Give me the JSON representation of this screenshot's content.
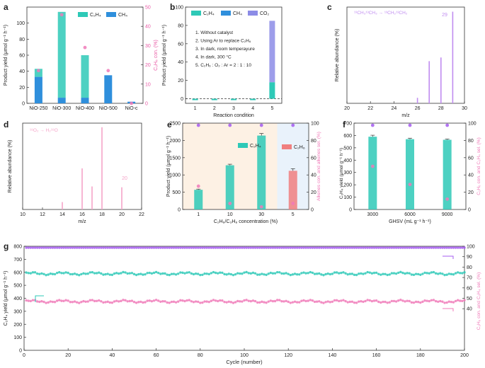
{
  "colors": {
    "c2h4": "#2ec9b7",
    "ch4": "#2f8fdc",
    "co2": "#8c8ce6",
    "c2h6": "#f07f7f",
    "conv": "#f07ab8",
    "sel": "#a45cf0",
    "pink_text": "#e85aa6",
    "purple_text": "#9b5de5",
    "ms_line": "#c08cf0",
    "ms_line_d": "#f5a3c8",
    "bg_orange": "#fdf1e4",
    "bg_blue": "#e9f2fb"
  },
  "panels": {
    "a": {
      "letter": "a"
    },
    "b": {
      "letter": "b",
      "notes": [
        "1. Without catalyst",
        "2. Using Ar to replace C₂H₆",
        "3. In dark, room temperayure",
        "4. In dark, 300 °C",
        "5. C₂H₆ : O₂ : Ar = 2 : 1 : 10"
      ]
    },
    "c": {
      "letter": "c",
      "annotation": "¹³CH₃¹³CH₃ → ¹³CH₂¹³CH₂",
      "peak_label": "29"
    },
    "d": {
      "letter": "d",
      "annotation": "¹⁸O₂ → H₂¹⁸O",
      "peak_label": "20"
    },
    "e": {
      "letter": "e"
    },
    "f": {
      "letter": "f"
    },
    "g": {
      "letter": "g"
    }
  },
  "chart_data": [
    {
      "panel": "a",
      "type": "bar",
      "categories": [
        "NiO-250",
        "NiO-300",
        "NiO-400",
        "NiO-500",
        "NiO-c"
      ],
      "series": [
        {
          "name": "C₂H₄",
          "values": [
            10,
            107,
            53,
            0,
            0
          ]
        },
        {
          "name": "CH₄",
          "values": [
            33,
            7,
            7,
            35,
            2
          ]
        },
        {
          "name": "C₂H₆ con.",
          "values": [
            17,
            46,
            29,
            17,
            0
          ]
        }
      ],
      "stacked": true,
      "ylabel": "Product yield (μmol g⁻¹ h⁻¹)",
      "ylabel_right": "C₂H₆ con. (%)",
      "ylim": [
        0,
        120
      ],
      "yticks": [
        0,
        20,
        40,
        60,
        80,
        100
      ],
      "ylim_right": [
        0,
        50
      ],
      "yticks_right": [
        0,
        10,
        20,
        30,
        40,
        50
      ],
      "legend": "top-right"
    },
    {
      "panel": "b",
      "type": "bar",
      "categories": [
        "1",
        "2",
        "3",
        "4",
        "5"
      ],
      "series": [
        {
          "name": "C₂H₄",
          "values": [
            0,
            0,
            0,
            0,
            18
          ]
        },
        {
          "name": "CH₄",
          "values": [
            0,
            0,
            0,
            0,
            0
          ]
        },
        {
          "name": "CO₂",
          "values": [
            0,
            0,
            0,
            0,
            67
          ]
        }
      ],
      "stacked": true,
      "xlabel": "Reaction condition",
      "ylabel": "Product yield (μmol g⁻¹ h⁻¹)",
      "ylim": [
        -5,
        100
      ],
      "yticks": [
        0,
        20,
        40,
        60,
        80,
        100
      ],
      "legend": "top"
    },
    {
      "panel": "c",
      "type": "bar",
      "x": [
        26,
        27,
        28,
        29
      ],
      "values": [
        6,
        46,
        50,
        100
      ],
      "xlabel": "m/z",
      "ylabel": "Relative abundance (%)",
      "xlim": [
        20,
        30
      ],
      "xticks": [
        20,
        22,
        24,
        26,
        28,
        30
      ],
      "ylim": [
        0,
        105
      ]
    },
    {
      "panel": "d",
      "type": "bar",
      "x": [
        14,
        16,
        17,
        18,
        20
      ],
      "values": [
        9,
        50,
        28,
        100,
        27
      ],
      "xlabel": "m/z",
      "ylabel": "Relative abundance (%)",
      "xlim": [
        10,
        22
      ],
      "xticks": [
        10,
        12,
        14,
        16,
        18,
        20,
        22
      ],
      "ylim": [
        0,
        105
      ]
    },
    {
      "panel": "e",
      "type": "bar",
      "categories": [
        "1",
        "10",
        "30",
        "5"
      ],
      "series": [
        {
          "name": "C₂H₄",
          "values": [
            570,
            1280,
            2140,
            0
          ],
          "errors": [
            20,
            30,
            60,
            0
          ]
        },
        {
          "name": "C₂H₆",
          "values": [
            0,
            0,
            0,
            1120
          ],
          "errors": [
            0,
            0,
            0,
            60
          ]
        },
        {
          "name": "Alkenes con.",
          "values": [
            27,
            7,
            3,
            7
          ]
        },
        {
          "name": "alkenes sel.",
          "values": [
            100,
            100,
            100,
            100
          ]
        }
      ],
      "xlabel": "C₂H₆/C₃H₈ concentration (%)",
      "ylabel": "Product yield (μmol g⁻¹ h⁻¹)",
      "ylabel_right": "Alkenes con. and alkenes sel. (%)",
      "ylim": [
        0,
        2500
      ],
      "yticks": [
        0,
        500,
        1000,
        1500,
        2000,
        2500
      ],
      "ylim_right": [
        0,
        100
      ],
      "yticks_right": [
        0,
        20,
        40,
        60,
        80,
        100
      ],
      "legend": "top-right"
    },
    {
      "panel": "f",
      "type": "bar",
      "categories": [
        "3000",
        "6000",
        "9000"
      ],
      "series": [
        {
          "name": "C₂H₄ yield",
          "values": [
            590,
            570,
            565
          ],
          "errors": [
            12,
            8,
            6
          ]
        },
        {
          "name": "C₂H₆ con.",
          "values": [
            50,
            29,
            12
          ]
        },
        {
          "name": "C₂H₄ sel.",
          "values": [
            100,
            100,
            100
          ]
        }
      ],
      "xlabel": "GHSV (mL g⁻¹ h⁻¹)",
      "ylabel": "C₂H₄ yield (μmol g⁻¹ h⁻¹)",
      "ylabel_right": "C₂H₆ con. and C₂H₄ sel. (%)",
      "ylim": [
        0,
        700
      ],
      "yticks": [
        0,
        100,
        200,
        300,
        400,
        500,
        600,
        700
      ],
      "ylim_right": [
        0,
        100
      ],
      "yticks_right": [
        0,
        20,
        40,
        60,
        80,
        100
      ]
    },
    {
      "panel": "g",
      "type": "scatter",
      "n_cycles": 200,
      "series": [
        {
          "name": "C₂H₄ yield",
          "mean": 590,
          "amplitude": 12
        },
        {
          "name": "C₂H₆ con.",
          "mean": 47,
          "amplitude": 1.5
        },
        {
          "name": "C₂H₄ sel.",
          "mean": 100,
          "amplitude": 0
        }
      ],
      "xlabel": "Cycle (number)",
      "ylabel": "C₂H₄ yield (μmol g⁻¹ h⁻¹)",
      "ylabel_right": "C₂H₆ con. and C₂H₄ sel. (%)",
      "xlim": [
        0,
        200
      ],
      "xticks": [
        0,
        20,
        40,
        60,
        80,
        100,
        120,
        140,
        160,
        180,
        200
      ],
      "ylim": [
        0,
        800
      ],
      "yticks": [
        0,
        100,
        200,
        300,
        400,
        500,
        600,
        700,
        800
      ],
      "ylim_right": [
        0,
        100
      ],
      "yticks_right": [
        40,
        50,
        60,
        70,
        80,
        90,
        100
      ]
    }
  ]
}
